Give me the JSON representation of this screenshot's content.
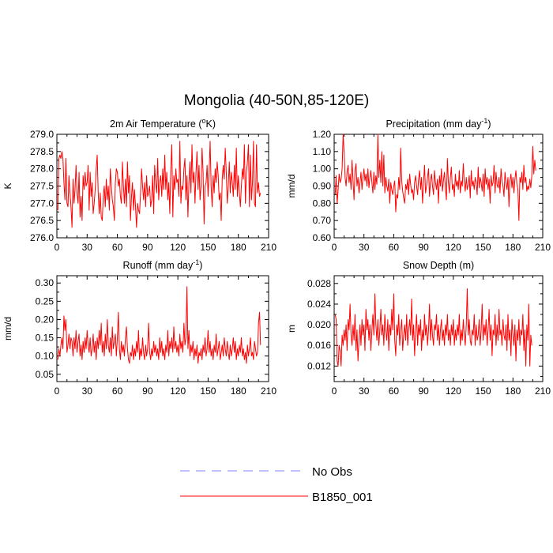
{
  "title": "Mongolia (40-50N,85-120E)",
  "colors": {
    "model": "#ff0000",
    "obs": "#8080ff",
    "axis": "#000000"
  },
  "legend": {
    "obs_label": "No Obs",
    "model_label": "B1850_001"
  },
  "chart_data": [
    {
      "type": "line",
      "title": "2m Air Temperature (°K)",
      "title_main": "2m Air Temperature (",
      "title_sup": "o",
      "title_tail": "K)",
      "ylabel": "K",
      "xlim": [
        0,
        210
      ],
      "ylim": [
        276.0,
        279.0
      ],
      "xticks": [
        "0",
        "30",
        "60",
        "90",
        "120",
        "150",
        "180",
        "210"
      ],
      "yticks": [
        "276.0",
        "276.5",
        "277.0",
        "277.5",
        "278.0",
        "278.5",
        "279.0"
      ],
      "series": [
        {
          "name": "B1850_001",
          "values": [
            276.8,
            278.3,
            278.4,
            278.3,
            278.5,
            278.3,
            277.6,
            277.1,
            278.3,
            277.0,
            276.9,
            277.8,
            277.3,
            276.9,
            276.3,
            277.7,
            277.0,
            277.4,
            278.1,
            277.3,
            277.0,
            277.9,
            276.6,
            277.2,
            276.5,
            277.8,
            277.4,
            277.9,
            277.5,
            277.6,
            278.1,
            276.8,
            277.9,
            277.2,
            277.6,
            276.7,
            277.0,
            277.4,
            278.0,
            278.4,
            277.3,
            276.7,
            277.3,
            276.6,
            276.5,
            277.2,
            277.5,
            276.9,
            277.7,
            277.1,
            277.5,
            276.8,
            278.0,
            277.5,
            277.1,
            276.9,
            276.5,
            277.6,
            278.0,
            277.9,
            277.5,
            277.7,
            277.2,
            277.0,
            278.2,
            277.5,
            277.0,
            277.7,
            276.9,
            278.2,
            277.3,
            277.8,
            276.5,
            277.2,
            277.6,
            276.8,
            277.4,
            276.9,
            276.3,
            277.0,
            276.8,
            276.7,
            277.3,
            278.0,
            277.5,
            277.1,
            277.6,
            276.9,
            277.8,
            277.2,
            277.3,
            277.5,
            276.9,
            277.1,
            277.8,
            276.7,
            278.1,
            277.6,
            277.3,
            278.3,
            277.1,
            277.6,
            277.8,
            277.2,
            278.0,
            277.4,
            278.4,
            277.4,
            277.9,
            277.1,
            277.6,
            276.7,
            278.0,
            278.7,
            276.6,
            277.8,
            277.4,
            278.0,
            277.6,
            277.7,
            277.2,
            278.8,
            277.0,
            277.5,
            277.4,
            278.0,
            278.3,
            277.1,
            277.8,
            276.6,
            277.6,
            278.2,
            277.3,
            278.7,
            277.6,
            277.9,
            277.0,
            277.9,
            278.5,
            277.4,
            278.1,
            277.1,
            277.5,
            278.6,
            277.9,
            276.4,
            277.5,
            277.6,
            278.1,
            277.2,
            277.9,
            278.8,
            277.5,
            276.9,
            277.8,
            277.3,
            278.0,
            277.6,
            278.2,
            277.8,
            277.1,
            277.3,
            276.5,
            277.7,
            278.1,
            277.7,
            278.6,
            277.9,
            277.0,
            277.5,
            278.2,
            277.3,
            277.9,
            277.6,
            277.2,
            278.1,
            277.4,
            278.6,
            277.2,
            277.8,
            277.3,
            276.9,
            277.5,
            278.0,
            277.7,
            278.7,
            277.0,
            277.9,
            278.2,
            278.7,
            276.9,
            278.4,
            277.1,
            277.6,
            278.8,
            277.0,
            276.9,
            278.7,
            277.3,
            277.6,
            277.2,
            277.3
          ]
        }
      ]
    },
    {
      "type": "line",
      "title": "Precipitation (mm day-1)",
      "title_main": "Precipitation (mm day",
      "title_sup": "-1",
      "title_tail": ")",
      "ylabel": "mm/d",
      "xlim": [
        0,
        210
      ],
      "ylim": [
        0.6,
        1.2
      ],
      "xticks": [
        "0",
        "30",
        "60",
        "90",
        "120",
        "150",
        "180",
        "210"
      ],
      "yticks": [
        "0.60",
        "0.70",
        "0.80",
        "0.90",
        "1.00",
        "1.10",
        "1.20"
      ],
      "series": [
        {
          "name": "B1850_001",
          "values": [
            0.85,
            0.96,
            0.8,
            0.88,
            0.97,
            0.92,
            0.94,
            1.0,
            1.2,
            1.1,
            0.95,
            0.9,
            0.98,
            1.02,
            0.92,
            0.97,
            0.88,
            1.05,
            0.93,
            0.82,
            0.99,
            1.03,
            0.9,
            0.95,
            0.86,
            0.92,
            0.98,
            0.88,
            0.95,
            1.0,
            0.93,
            0.97,
            0.9,
            1.0,
            0.89,
            0.95,
            0.99,
            0.92,
            0.86,
            0.98,
            0.88,
            0.96,
            0.91,
            1.2,
            0.95,
            1.05,
            0.92,
            1.1,
            0.9,
            1.08,
            0.86,
            0.95,
            0.9,
            0.87,
            0.94,
            0.8,
            0.92,
            0.88,
            0.85,
            0.9,
            0.93,
            0.75,
            0.85,
            0.83,
            0.95,
            0.88,
            1.12,
            0.93,
            0.87,
            0.83,
            0.8,
            0.91,
            0.88,
            0.94,
            0.85,
            0.97,
            0.91,
            0.86,
            0.88,
            0.82,
            0.92,
            0.96,
            0.9,
            0.85,
            0.94,
            0.99,
            0.88,
            0.95,
            0.8,
            0.92,
            1.02,
            0.86,
            0.9,
            0.95,
            1.0,
            0.84,
            0.93,
            0.97,
            0.9,
            0.85,
            0.99,
            0.92,
            0.88,
            0.94,
            0.8,
            0.96,
            0.9,
            1.0,
            0.87,
            0.93,
            0.98,
            0.89,
            0.82,
            1.06,
            0.92,
            0.86,
            0.95,
            1.01,
            0.88,
            0.91,
            0.84,
            0.97,
            0.9,
            0.93,
            0.88,
            0.99,
            0.86,
            0.93,
            0.9,
            1.03,
            0.92,
            0.87,
            0.95,
            0.88,
            0.91,
            0.96,
            0.83,
            0.99,
            0.9,
            0.93,
            0.88,
            0.95,
            0.92,
            0.85,
            1.01,
            0.89,
            0.95,
            0.92,
            0.87,
            0.97,
            0.84,
            1.0,
            0.91,
            0.95,
            0.88,
            0.94,
            0.8,
            0.96,
            0.9,
            0.92,
            1.02,
            0.86,
            0.98,
            0.91,
            0.89,
            0.95,
            0.86,
            1.0,
            0.93,
            0.9,
            0.84,
            0.98,
            0.92,
            0.88,
            0.95,
            0.78,
            0.93,
            0.97,
            0.89,
            0.95,
            0.86,
            0.94,
            0.99,
            0.91,
            0.88,
            0.7,
            0.95,
            0.92,
            0.98,
            0.88,
            1.02,
            0.92,
            0.95,
            0.87,
            0.9,
            0.88,
            0.94,
            0.89,
            0.96,
            1.13,
            0.97,
            1.05,
            0.99
          ]
        }
      ]
    },
    {
      "type": "line",
      "title": "Runoff (mm day-1)",
      "title_main": "Runoff (mm day",
      "title_sup": "-1",
      "title_tail": ")",
      "ylabel": "mm/d",
      "xlim": [
        0,
        210
      ],
      "ylim": [
        0.03,
        0.32
      ],
      "xticks": [
        "0",
        "30",
        "60",
        "90",
        "120",
        "150",
        "180",
        "210"
      ],
      "yticks": [
        "0.05",
        "0.10",
        "0.15",
        "0.20",
        "0.25",
        "0.30"
      ],
      "series": [
        {
          "name": "B1850_001",
          "values": [
            0.09,
            0.12,
            0.1,
            0.13,
            0.15,
            0.12,
            0.21,
            0.17,
            0.2,
            0.11,
            0.13,
            0.16,
            0.12,
            0.15,
            0.14,
            0.1,
            0.15,
            0.12,
            0.17,
            0.11,
            0.14,
            0.16,
            0.1,
            0.13,
            0.09,
            0.14,
            0.11,
            0.15,
            0.12,
            0.17,
            0.13,
            0.11,
            0.15,
            0.1,
            0.12,
            0.16,
            0.11,
            0.14,
            0.09,
            0.15,
            0.12,
            0.17,
            0.13,
            0.19,
            0.11,
            0.14,
            0.1,
            0.16,
            0.12,
            0.2,
            0.13,
            0.11,
            0.15,
            0.1,
            0.18,
            0.12,
            0.14,
            0.16,
            0.1,
            0.15,
            0.22,
            0.12,
            0.09,
            0.14,
            0.11,
            0.13,
            0.1,
            0.15,
            0.18,
            0.12,
            0.09,
            0.08,
            0.11,
            0.1,
            0.13,
            0.09,
            0.12,
            0.1,
            0.14,
            0.11,
            0.17,
            0.09,
            0.12,
            0.1,
            0.15,
            0.11,
            0.09,
            0.13,
            0.1,
            0.12,
            0.19,
            0.11,
            0.09,
            0.12,
            0.1,
            0.14,
            0.11,
            0.13,
            0.1,
            0.12,
            0.09,
            0.15,
            0.11,
            0.14,
            0.1,
            0.12,
            0.09,
            0.13,
            0.11,
            0.17,
            0.1,
            0.14,
            0.12,
            0.15,
            0.11,
            0.18,
            0.12,
            0.14,
            0.11,
            0.13,
            0.1,
            0.16,
            0.12,
            0.14,
            0.11,
            0.19,
            0.13,
            0.15,
            0.29,
            0.12,
            0.17,
            0.1,
            0.13,
            0.11,
            0.14,
            0.09,
            0.12,
            0.1,
            0.13,
            0.08,
            0.11,
            0.1,
            0.12,
            0.09,
            0.13,
            0.11,
            0.15,
            0.1,
            0.12,
            0.17,
            0.11,
            0.14,
            0.1,
            0.12,
            0.09,
            0.13,
            0.11,
            0.16,
            0.1,
            0.12,
            0.14,
            0.09,
            0.11,
            0.13,
            0.1,
            0.15,
            0.12,
            0.1,
            0.14,
            0.11,
            0.09,
            0.13,
            0.1,
            0.12,
            0.15,
            0.11,
            0.14,
            0.09,
            0.12,
            0.1,
            0.13,
            0.11,
            0.15,
            0.1,
            0.12,
            0.09,
            0.11,
            0.08,
            0.13,
            0.1,
            0.12,
            0.15,
            0.1,
            0.11,
            0.09,
            0.14,
            0.12,
            0.1,
            0.11,
            0.19,
            0.22,
            0.13
          ]
        }
      ]
    },
    {
      "type": "line",
      "title": "Snow Depth (m)",
      "title_main": "Snow Depth (m)",
      "title_sup": "",
      "title_tail": "",
      "ylabel": "m",
      "xlim": [
        0,
        210
      ],
      "ylim": [
        0.009,
        0.0295
      ],
      "xticks": [
        "0",
        "30",
        "60",
        "90",
        "120",
        "150",
        "180",
        "210"
      ],
      "yticks": [
        "0.012",
        "0.016",
        "0.020",
        "0.024",
        "0.028"
      ],
      "series": [
        {
          "name": "B1850_001",
          "values": [
            0.022,
            0.021,
            0.013,
            0.012,
            0.016,
            0.015,
            0.012,
            0.018,
            0.016,
            0.019,
            0.017,
            0.02,
            0.015,
            0.021,
            0.019,
            0.024,
            0.018,
            0.016,
            0.02,
            0.017,
            0.022,
            0.015,
            0.019,
            0.013,
            0.017,
            0.02,
            0.016,
            0.021,
            0.018,
            0.02,
            0.015,
            0.023,
            0.019,
            0.021,
            0.017,
            0.02,
            0.015,
            0.019,
            0.022,
            0.018,
            0.026,
            0.02,
            0.017,
            0.021,
            0.016,
            0.019,
            0.023,
            0.018,
            0.02,
            0.016,
            0.022,
            0.019,
            0.017,
            0.021,
            0.015,
            0.02,
            0.018,
            0.023,
            0.019,
            0.026,
            0.017,
            0.014,
            0.02,
            0.018,
            0.022,
            0.016,
            0.019,
            0.021,
            0.015,
            0.018,
            0.02,
            0.017,
            0.022,
            0.016,
            0.019,
            0.021,
            0.018,
            0.025,
            0.017,
            0.02,
            0.014,
            0.019,
            0.022,
            0.016,
            0.02,
            0.018,
            0.021,
            0.015,
            0.019,
            0.017,
            0.022,
            0.018,
            0.02,
            0.016,
            0.019,
            0.024,
            0.017,
            0.021,
            0.018,
            0.016,
            0.02,
            0.019,
            0.022,
            0.017,
            0.02,
            0.016,
            0.019,
            0.021,
            0.017,
            0.019,
            0.016,
            0.02,
            0.018,
            0.022,
            0.017,
            0.019,
            0.016,
            0.02,
            0.018,
            0.021,
            0.016,
            0.019,
            0.017,
            0.02,
            0.018,
            0.022,
            0.016,
            0.019,
            0.017,
            0.021,
            0.018,
            0.016,
            0.02,
            0.027,
            0.018,
            0.021,
            0.017,
            0.016,
            0.019,
            0.018,
            0.022,
            0.016,
            0.02,
            0.017,
            0.018,
            0.021,
            0.016,
            0.019,
            0.024,
            0.017,
            0.02,
            0.018,
            0.021,
            0.016,
            0.019,
            0.023,
            0.017,
            0.02,
            0.014,
            0.019,
            0.018,
            0.022,
            0.016,
            0.02,
            0.017,
            0.023,
            0.018,
            0.019,
            0.016,
            0.021,
            0.018,
            0.017,
            0.02,
            0.015,
            0.022,
            0.017,
            0.019,
            0.014,
            0.021,
            0.018,
            0.016,
            0.02,
            0.013,
            0.019,
            0.017,
            0.021,
            0.016,
            0.019,
            0.018,
            0.022,
            0.015,
            0.019,
            0.012,
            0.02,
            0.017,
            0.024,
            0.012,
            0.018,
            0.016
          ]
        }
      ]
    }
  ]
}
